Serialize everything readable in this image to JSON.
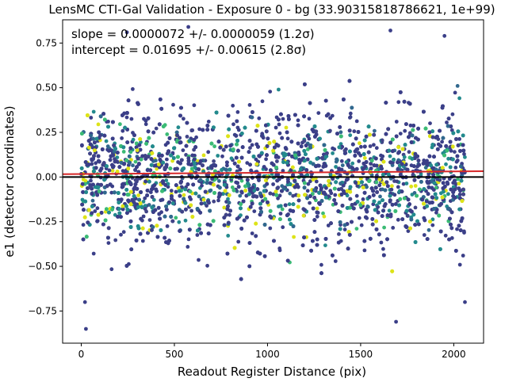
{
  "chart_data": {
    "type": "scatter",
    "title": "LensMC CTI-Gal Validation - Exposure 0 - bg (33.90315818786621, 1e+99)",
    "xlabel": "Readout Register Distance (pix)",
    "ylabel": "e1 (detector coordinates)",
    "xlim": [
      -100,
      2160
    ],
    "ylim": [
      -0.93,
      0.88
    ],
    "x_ticks": [
      0,
      500,
      1000,
      1500,
      2000
    ],
    "y_ticks": [
      -0.75,
      -0.5,
      -0.25,
      0.0,
      0.25,
      0.5,
      0.75
    ],
    "x_tick_labels": [
      "0",
      "500",
      "1000",
      "1500",
      "2000"
    ],
    "y_tick_labels": [
      "−0.75",
      "−0.50",
      "−0.25",
      "0.00",
      "0.25",
      "0.50",
      "0.75"
    ],
    "grid": false,
    "annotations": [
      "slope = 0.0000072 +/- 0.0000059 (1.2σ)",
      "intercept = 0.01695 +/- 0.00615 (2.8σ)"
    ],
    "fit_line": {
      "slope": 7.2e-06,
      "intercept": 0.01695,
      "x_range": [
        -100,
        2160
      ],
      "color": "#d62728"
    },
    "zero_line": {
      "y": 0.0,
      "color": "#000000"
    },
    "scatter_x_range": [
      0,
      2060
    ],
    "scatter_y_range": [
      -0.85,
      0.84
    ],
    "scatter_count_approx": 5000,
    "marker_colormap": "viridis",
    "notable_points": [
      {
        "x": 20,
        "y": -0.7
      },
      {
        "x": 25,
        "y": -0.85
      },
      {
        "x": 245,
        "y": 0.81
      },
      {
        "x": 575,
        "y": 0.84
      },
      {
        "x": 1660,
        "y": 0.82
      },
      {
        "x": 1690,
        "y": -0.81
      },
      {
        "x": 1950,
        "y": 0.79
      },
      {
        "x": 2060,
        "y": -0.7
      },
      {
        "x": 2050,
        "y": -0.44
      }
    ],
    "colors": {
      "viridis_dark": "#3b3f88",
      "viridis_mid": "#238a8d",
      "viridis_green": "#3bbb75",
      "viridis_yellow": "#dde318"
    }
  }
}
